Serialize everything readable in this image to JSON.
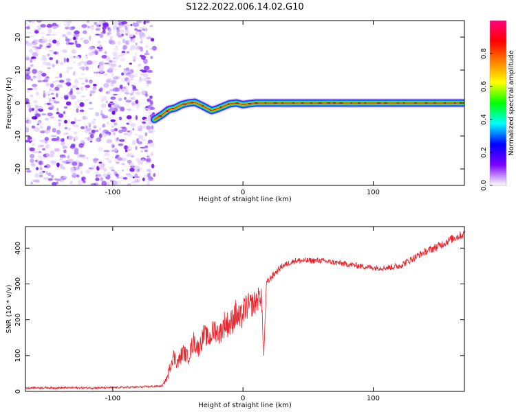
{
  "title": "S122.2022.006.14.02.G10",
  "chart_data": [
    {
      "type": "heatmap",
      "xlabel": "Height of straight line (km)",
      "ylabel": "Frequency (Hz)",
      "xlim": [
        -167,
        170
      ],
      "ylim": [
        -25,
        25
      ],
      "x_ticks": [
        -100,
        0,
        100
      ],
      "y_ticks": [
        -20,
        -10,
        0,
        10,
        20
      ],
      "colorbar": {
        "label": "Normalized spectral amplitude",
        "range": [
          0,
          1
        ],
        "ticks": [
          "0.0",
          "0.2",
          "0.4",
          "0.6",
          "0.8"
        ],
        "colors": [
          "#ffffff",
          "#7a00ff",
          "#0000ff",
          "#00ffff",
          "#00ff00",
          "#ffff00",
          "#ff8000",
          "#ff0000",
          "#ff0080"
        ]
      },
      "noise_region_x": [
        -167,
        -68
      ],
      "ridge": {
        "x": [
          -68,
          -62,
          -57,
          -52,
          -47,
          -42,
          -37,
          -33,
          -28,
          -24,
          -20,
          -15,
          -10,
          -5,
          0,
          5,
          10,
          20,
          30,
          40,
          60,
          80,
          90,
          100,
          120,
          140,
          170
        ],
        "y": [
          -5,
          -3.5,
          -2,
          -1.5,
          -0.5,
          0,
          0.2,
          -0.5,
          -1.5,
          -2.3,
          -1.8,
          -1,
          -0.2,
          0,
          -0.5,
          -0.2,
          0,
          0,
          0,
          0,
          0,
          0,
          0,
          0,
          0,
          0,
          0
        ]
      }
    },
    {
      "type": "line",
      "xlabel": "Height of straight line (km)",
      "ylabel": "SNR (10 * v/v)",
      "xlim": [
        -167,
        170
      ],
      "ylim": [
        0,
        460
      ],
      "x_ticks": [
        -100,
        0,
        100
      ],
      "y_ticks": [
        0,
        100,
        200,
        300,
        400
      ],
      "series": [
        {
          "color": "#e8222a",
          "x": [
            -167,
            -140,
            -110,
            -80,
            -62,
            -58,
            -54,
            -50,
            -46,
            -42,
            -38,
            -34,
            -30,
            -26,
            -22,
            -18,
            -14,
            -10,
            -6,
            -2,
            2,
            6,
            10,
            14,
            16,
            18,
            22,
            30,
            40,
            60,
            80,
            100,
            110,
            120,
            130,
            140,
            150,
            160,
            170
          ],
          "values": [
            10,
            10,
            10,
            12,
            15,
            40,
            100,
            80,
            110,
            95,
            140,
            120,
            160,
            145,
            175,
            160,
            190,
            185,
            215,
            200,
            235,
            240,
            250,
            270,
            100,
            300,
            320,
            350,
            365,
            365,
            355,
            345,
            345,
            350,
            370,
            390,
            405,
            425,
            440
          ],
          "noise": [
            3,
            3,
            3,
            3,
            3,
            10,
            25,
            20,
            25,
            20,
            30,
            25,
            30,
            28,
            35,
            30,
            40,
            35,
            45,
            40,
            40,
            35,
            35,
            30,
            10,
            12,
            10,
            8,
            8,
            8,
            8,
            8,
            8,
            10,
            10,
            10,
            12,
            12,
            12
          ]
        }
      ]
    }
  ]
}
